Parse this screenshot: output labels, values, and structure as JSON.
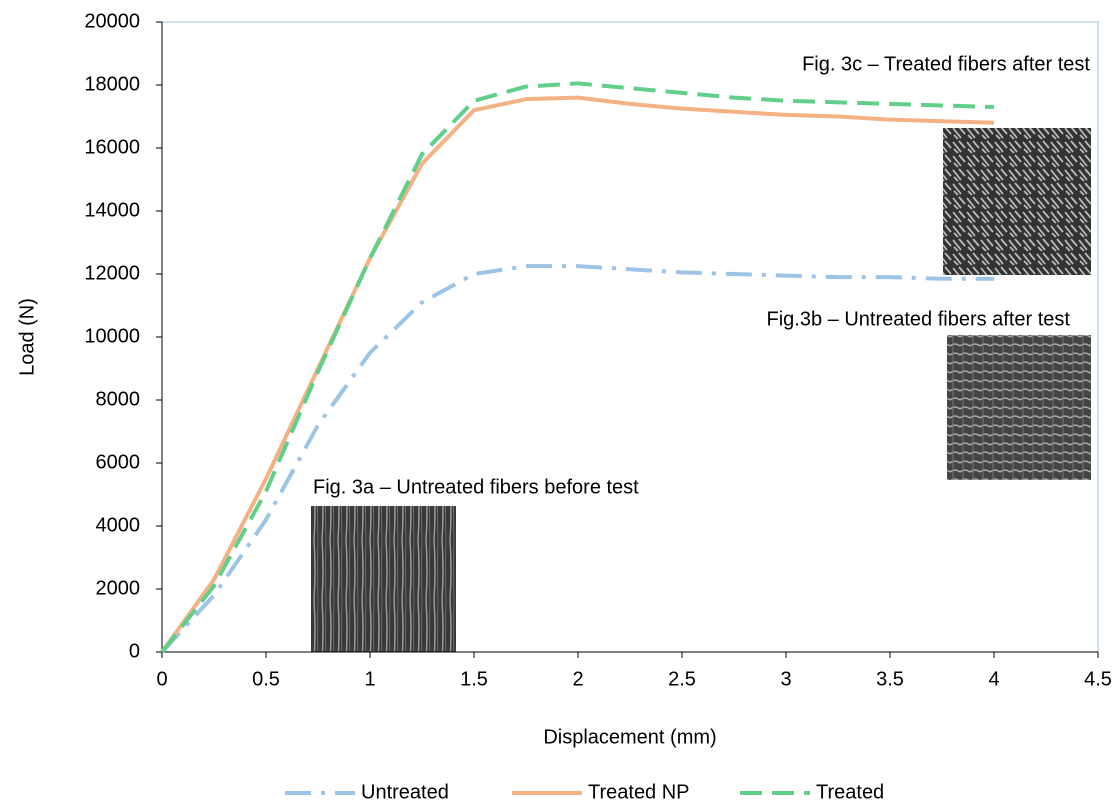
{
  "chart_data": {
    "type": "line",
    "x_label": "Displacement (mm)",
    "y_label": "Load (N)",
    "xlim": [
      0,
      4.5
    ],
    "ylim": [
      0,
      20000
    ],
    "xticks": [
      0,
      0.5,
      1,
      1.5,
      2,
      2.5,
      3,
      3.5,
      4,
      4.5
    ],
    "yticks": [
      0,
      2000,
      4000,
      6000,
      8000,
      10000,
      12000,
      14000,
      16000,
      18000,
      20000
    ],
    "x": [
      0,
      0.25,
      0.5,
      0.75,
      1,
      1.25,
      1.5,
      1.75,
      2,
      2.25,
      2.5,
      2.75,
      3,
      3.25,
      3.5,
      3.75,
      4
    ],
    "series": [
      {
        "name": "Untreated",
        "color": "#9dc3e6",
        "dash": "dashdot",
        "values": [
          0,
          1800,
          4200,
          7200,
          9500,
          11100,
          12000,
          12250,
          12250,
          12150,
          12050,
          12000,
          11950,
          11900,
          11900,
          11850,
          11850
        ]
      },
      {
        "name": "Treated NP",
        "color": "#f4b183",
        "dash": "solid",
        "values": [
          0,
          2300,
          5500,
          9000,
          12500,
          15500,
          17200,
          17550,
          17600,
          17400,
          17250,
          17150,
          17050,
          17000,
          16900,
          16850,
          16800
        ]
      },
      {
        "name": "Treated",
        "color": "#5fcf8a",
        "dash": "dashed",
        "values": [
          0,
          2100,
          5100,
          8900,
          12500,
          15800,
          17500,
          17950,
          18050,
          17900,
          17750,
          17600,
          17500,
          17450,
          17400,
          17350,
          17300
        ]
      }
    ],
    "annotations": [
      "Fig. 3c – Treated fibers after test",
      "Fig.3b – Untreated fibers after test",
      "Fig. 3a – Untreated fibers before test"
    ],
    "legend": "bottom"
  }
}
